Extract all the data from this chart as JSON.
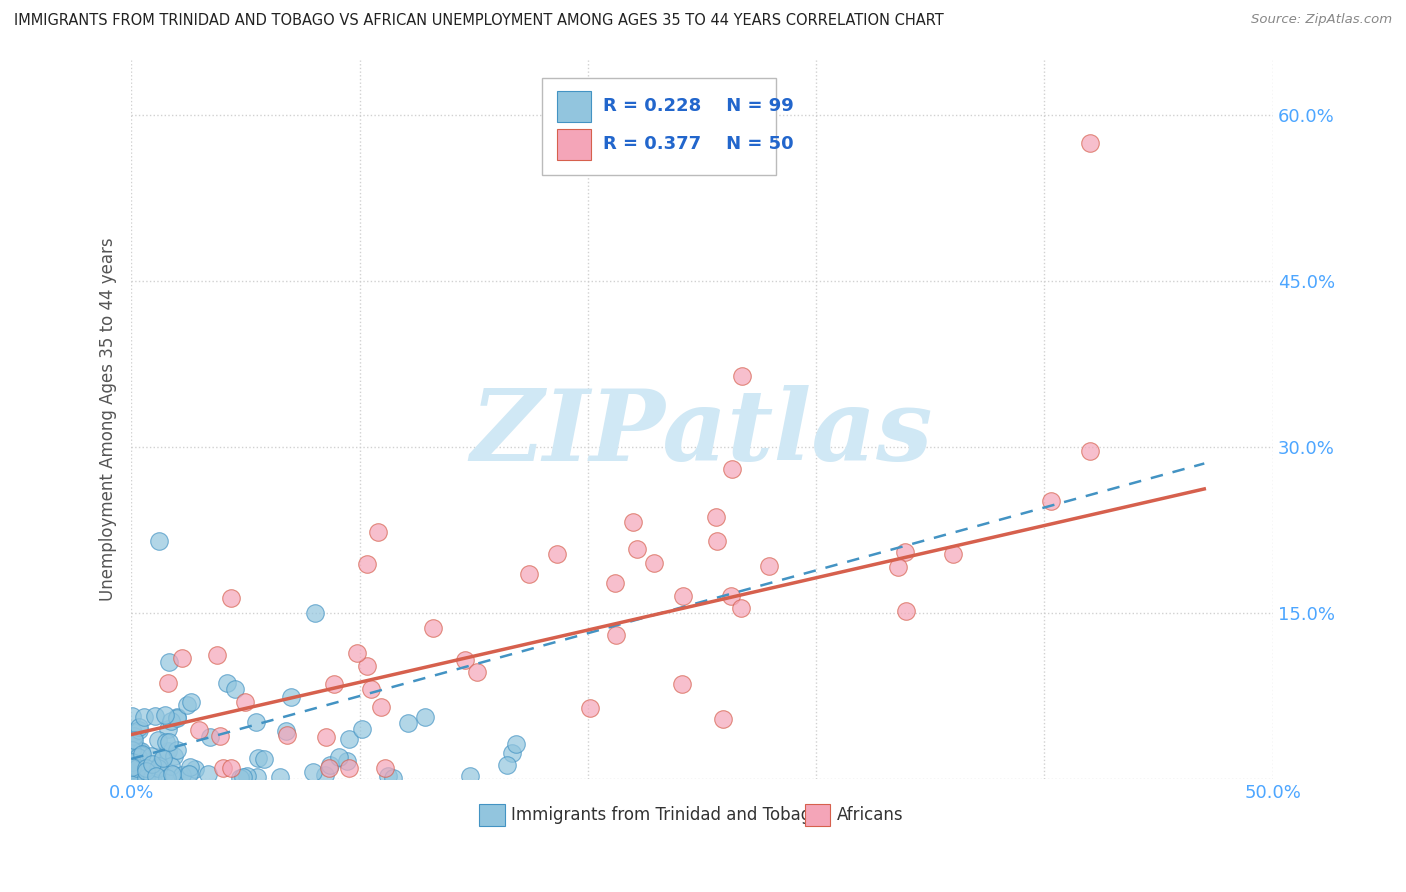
{
  "title": "IMMIGRANTS FROM TRINIDAD AND TOBAGO VS AFRICAN UNEMPLOYMENT AMONG AGES 35 TO 44 YEARS CORRELATION CHART",
  "source": "Source: ZipAtlas.com",
  "ylabel": "Unemployment Among Ages 35 to 44 years",
  "xlim": [
    0.0,
    0.5
  ],
  "ylim": [
    0.0,
    0.65
  ],
  "xticks": [
    0.0,
    0.1,
    0.2,
    0.3,
    0.4,
    0.5
  ],
  "yticks": [
    0.0,
    0.15,
    0.3,
    0.45,
    0.6
  ],
  "blue_color": "#92c5de",
  "blue_edge_color": "#4393c3",
  "pink_color": "#f4a5b8",
  "pink_edge_color": "#d6604d",
  "blue_line_color": "#4393c3",
  "pink_line_color": "#d6604d",
  "tick_color": "#4da6ff",
  "ylabel_color": "#555555",
  "title_color": "#222222",
  "grid_color": "#cccccc",
  "background_color": "#ffffff",
  "watermark_color": "#d0e8f5",
  "watermark_text": "ZIPatlas"
}
